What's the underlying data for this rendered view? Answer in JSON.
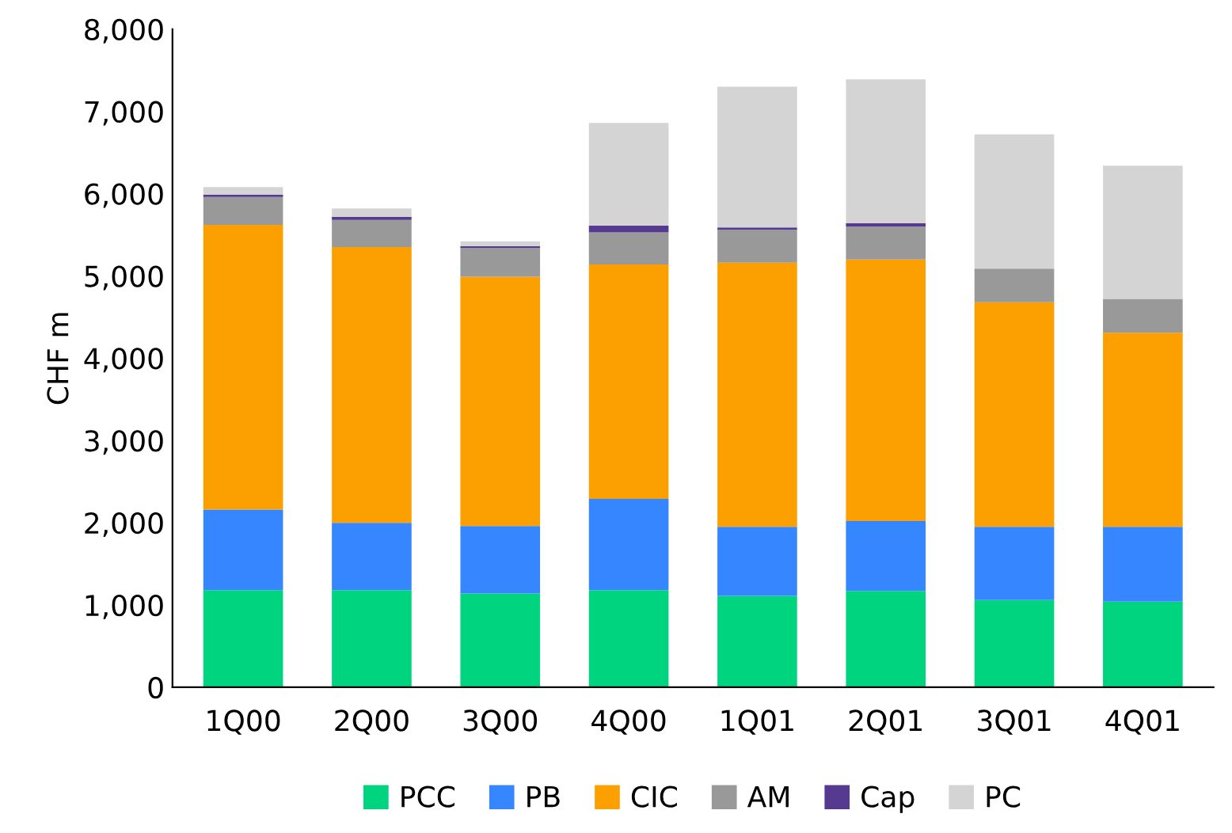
{
  "chart_data": {
    "type": "bar",
    "stacked": true,
    "ylabel": "CHF m",
    "categories": [
      "1Q00",
      "2Q00",
      "3Q00",
      "4Q00",
      "1Q01",
      "2Q01",
      "3Q01",
      "4Q01"
    ],
    "series": [
      {
        "name": "PCC",
        "color": "#00d47f",
        "values": [
          1180,
          1180,
          1140,
          1180,
          1110,
          1170,
          1060,
          1040
        ]
      },
      {
        "name": "PB",
        "color": "#3686ff",
        "values": [
          980,
          820,
          820,
          1110,
          840,
          850,
          890,
          910
        ]
      },
      {
        "name": "CIC",
        "color": "#fba000",
        "values": [
          3460,
          3350,
          3030,
          2850,
          3210,
          3180,
          2730,
          2360
        ]
      },
      {
        "name": "AM",
        "color": "#999999",
        "values": [
          340,
          330,
          350,
          390,
          400,
          400,
          410,
          410
        ]
      },
      {
        "name": "Cap",
        "color": "#553a8f",
        "values": [
          30,
          40,
          20,
          80,
          30,
          40,
          0,
          0
        ]
      },
      {
        "name": "PC",
        "color": "#d4d4d4",
        "values": [
          90,
          100,
          60,
          1250,
          1710,
          1750,
          1630,
          1620
        ]
      }
    ],
    "ylim": [
      0,
      8000
    ],
    "yticks": [
      {
        "value": 0,
        "label": "0"
      },
      {
        "value": 1000,
        "label": "1,000"
      },
      {
        "value": 2000,
        "label": "2,000"
      },
      {
        "value": 3000,
        "label": "3,000"
      },
      {
        "value": 4000,
        "label": "4,000"
      },
      {
        "value": 5000,
        "label": "5,000"
      },
      {
        "value": 6000,
        "label": "6,000"
      },
      {
        "value": 7000,
        "label": "7,000"
      },
      {
        "value": 8000,
        "label": "8,000"
      }
    ],
    "grid": false,
    "legend": "bottom"
  }
}
